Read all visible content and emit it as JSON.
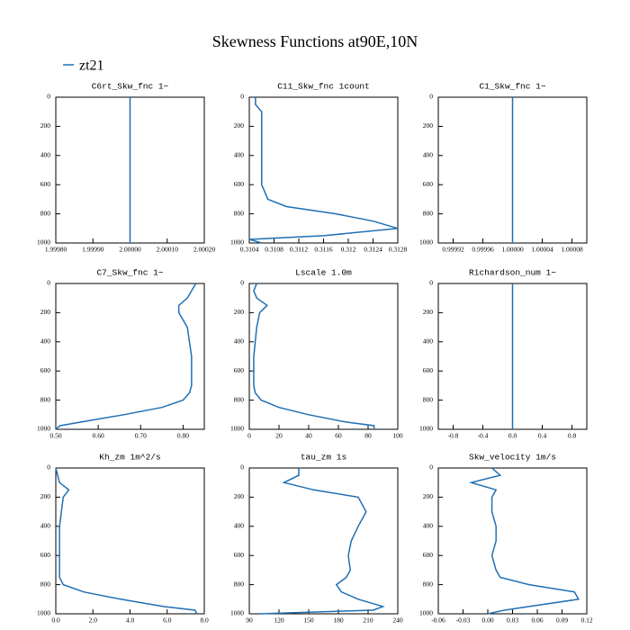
{
  "figure": {
    "title": "Skewness Functions at90E,10N",
    "series_name": "zt21",
    "color": "#1f6fb4"
  },
  "chart_data": [
    {
      "type": "line",
      "title": "C6rt_Skw_fnc   1−",
      "y": [
        0,
        50,
        100,
        150,
        200,
        300,
        400,
        500,
        600,
        700,
        750,
        800,
        850,
        900,
        950,
        975,
        1000
      ],
      "values": [
        2,
        2,
        2,
        2,
        2,
        2,
        2,
        2,
        2,
        2,
        2,
        2,
        2,
        2,
        2,
        2,
        2
      ],
      "xlim": [
        1.9998,
        2.0002
      ],
      "xticks": [
        {
          "value": 1.9998,
          "label": "1.99980"
        },
        {
          "value": 1.9999,
          "label": "1.99990"
        },
        {
          "value": 2,
          "label": "2.00000"
        },
        {
          "value": 2.0001,
          "label": "2.00010"
        },
        {
          "value": 2.0002,
          "label": "2.00020"
        }
      ],
      "ylim": [
        1000,
        0
      ],
      "yticks": [
        0,
        200,
        400,
        600,
        800,
        1000
      ]
    },
    {
      "type": "line",
      "title": "C11_Skw_fnc   1count",
      "y": [
        0,
        50,
        100,
        150,
        200,
        300,
        400,
        500,
        600,
        700,
        750,
        800,
        850,
        900,
        950,
        975,
        1000
      ],
      "values": [
        0.3105,
        0.3105,
        0.3106,
        0.3106,
        0.3106,
        0.3106,
        0.3106,
        0.3106,
        0.3106,
        0.3107,
        0.311,
        0.3118,
        0.3124,
        0.3128,
        0.3116,
        0.3104,
        0.3106
      ],
      "xlim": [
        0.3104,
        0.3128
      ],
      "xticks": [
        0.3104,
        0.3108,
        0.3112,
        0.3116,
        0.312,
        0.3124,
        0.3128
      ],
      "ylim": [
        1000,
        0
      ],
      "yticks": [
        0,
        200,
        400,
        600,
        800,
        1000
      ]
    },
    {
      "type": "line",
      "title": "C1_Skw_fnc   1−",
      "y": [
        0,
        50,
        100,
        150,
        200,
        300,
        400,
        500,
        600,
        700,
        750,
        800,
        850,
        900,
        950,
        975,
        1000
      ],
      "values": [
        1,
        1,
        1,
        1,
        1,
        1,
        1,
        1,
        1,
        1,
        1,
        1,
        1,
        1,
        1,
        1,
        1
      ],
      "xlim": [
        0.9999,
        1.0001
      ],
      "xticks": [
        0.99992,
        0.99996,
        {
          "value": 1,
          "label": "1.00000"
        },
        1.00004,
        1.00008
      ],
      "ylim": [
        1000,
        0
      ],
      "yticks": [
        0,
        200,
        400,
        600,
        800,
        1000
      ]
    },
    {
      "type": "line",
      "title": "C7_Skw_fnc   1−",
      "y": [
        0,
        50,
        100,
        150,
        200,
        300,
        400,
        500,
        600,
        700,
        750,
        800,
        850,
        900,
        950,
        975,
        1000
      ],
      "values": [
        0.83,
        0.82,
        0.81,
        0.79,
        0.79,
        0.81,
        0.815,
        0.82,
        0.82,
        0.82,
        0.815,
        0.8,
        0.75,
        0.66,
        0.56,
        0.51,
        0.5
      ],
      "xlim": [
        0.5,
        0.85
      ],
      "xticks": [
        {
          "value": 0.5,
          "label": "0.50"
        },
        {
          "value": 0.6,
          "label": "0.60"
        },
        {
          "value": 0.7,
          "label": "0.70"
        },
        {
          "value": 0.8,
          "label": "0.80"
        }
      ],
      "ylim": [
        1000,
        0
      ],
      "yticks": [
        0,
        200,
        400,
        600,
        800,
        1000
      ]
    },
    {
      "type": "line",
      "title": "Lscale   1.0m",
      "y": [
        0,
        50,
        100,
        150,
        200,
        300,
        400,
        500,
        600,
        700,
        750,
        800,
        850,
        900,
        950,
        975,
        1000
      ],
      "values": [
        5,
        3,
        5,
        12,
        7,
        5,
        4,
        3,
        3,
        3,
        4,
        8,
        20,
        40,
        65,
        84,
        84
      ],
      "xlim": [
        0,
        100
      ],
      "xticks": [
        0,
        20,
        40,
        60,
        80,
        100
      ],
      "ylim": [
        1000,
        0
      ],
      "yticks": [
        0,
        200,
        400,
        600,
        800,
        1000
      ]
    },
    {
      "type": "line",
      "title": "Richardson_num   1−",
      "y": [
        0,
        50,
        100,
        150,
        200,
        300,
        400,
        500,
        600,
        700,
        750,
        800,
        850,
        900,
        950,
        975,
        1000
      ],
      "values": [
        0,
        0,
        0,
        0,
        0,
        0,
        0,
        0,
        0,
        0,
        0,
        0,
        0,
        0,
        0,
        0,
        0
      ],
      "xlim": [
        -1,
        1
      ],
      "xticks": [
        -0.8,
        -0.4,
        {
          "value": 0,
          "label": "0.0"
        },
        0.4,
        0.8
      ],
      "ylim": [
        1000,
        0
      ],
      "yticks": [
        0,
        200,
        400,
        600,
        800,
        1000
      ]
    },
    {
      "type": "line",
      "title": "Kh_zm   1m^2/s",
      "y": [
        0,
        50,
        100,
        150,
        200,
        300,
        400,
        500,
        600,
        700,
        750,
        800,
        850,
        900,
        950,
        975,
        1000
      ],
      "values": [
        0,
        0.1,
        0.2,
        0.7,
        0.4,
        0.3,
        0.2,
        0.2,
        0.2,
        0.2,
        0.2,
        0.4,
        1.5,
        3.5,
        5.8,
        7.5,
        7.6
      ],
      "xlim": [
        0,
        8
      ],
      "xticks": [
        {
          "value": 0,
          "label": "0.0"
        },
        {
          "value": 2,
          "label": "2.0"
        },
        {
          "value": 4,
          "label": "4.0"
        },
        {
          "value": 6,
          "label": "6.0"
        },
        {
          "value": 8,
          "label": "8.0"
        }
      ],
      "ylim": [
        1000,
        0
      ],
      "yticks": [
        0,
        200,
        400,
        600,
        800,
        1000
      ]
    },
    {
      "type": "line",
      "title": "tau_zm   1s",
      "y": [
        0,
        50,
        100,
        150,
        200,
        300,
        400,
        500,
        600,
        700,
        750,
        800,
        850,
        900,
        950,
        975,
        1000
      ],
      "values": [
        140,
        140,
        125,
        155,
        200,
        208,
        200,
        193,
        190,
        192,
        188,
        178,
        183,
        200,
        225,
        215,
        100
      ],
      "xlim": [
        90,
        240
      ],
      "xticks": [
        90,
        120,
        150,
        180,
        210,
        240
      ],
      "ylim": [
        1000,
        0
      ],
      "yticks": [
        0,
        200,
        400,
        600,
        800,
        1000
      ]
    },
    {
      "type": "line",
      "title": "Skw_velocity   1m/s",
      "y": [
        0,
        50,
        100,
        150,
        200,
        300,
        400,
        500,
        600,
        700,
        750,
        800,
        850,
        900,
        950,
        975,
        1000
      ],
      "values": [
        0.005,
        0.015,
        -0.02,
        0.01,
        0.005,
        0.005,
        0.01,
        0.01,
        0.005,
        0.01,
        0.015,
        0.05,
        0.105,
        0.11,
        0.05,
        0.02,
        0
      ],
      "xlim": [
        -0.06,
        0.12
      ],
      "xticks": [
        -0.06,
        -0.03,
        {
          "value": 0,
          "label": "0.00"
        },
        0.03,
        0.06,
        0.09,
        0.12
      ],
      "ylim": [
        1000,
        0
      ],
      "yticks": [
        0,
        200,
        400,
        600,
        800,
        1000
      ]
    }
  ]
}
